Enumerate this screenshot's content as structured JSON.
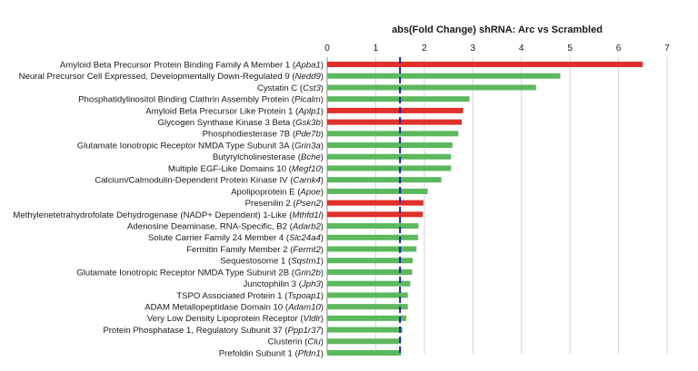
{
  "chart_data": {
    "type": "bar",
    "orientation": "horizontal",
    "title": "abs(Fold Change)  shRNA: Arc vs Scrambled",
    "xlim": [
      0,
      7
    ],
    "xticks": [
      "0",
      "1",
      "2",
      "3",
      "4",
      "5",
      "6",
      "7"
    ],
    "grid": true,
    "reference_line": 1.5,
    "colors": {
      "red": "#e0302b",
      "green": "#5cb85c",
      "reference": "#1f1fb0"
    },
    "bars": [
      {
        "name": "Amyloid Beta Precursor Protein Binding Family A Member 1 (",
        "gene": "Apba1",
        "value": 6.5,
        "color": "red"
      },
      {
        "name": "Neural Precursor Cell Expressed, Developmentally Down-Regulated 9 (",
        "gene": "Nedd9",
        "value": 4.8,
        "color": "green"
      },
      {
        "name": "Cystatin C (",
        "gene": "Cst3",
        "value": 4.3,
        "color": "green"
      },
      {
        "name": "Phosphatidylinositol Binding Clathrin Assembly Protein (",
        "gene": "Picalm",
        "value": 2.93,
        "color": "green"
      },
      {
        "name": "Amyloid Beta Precursor Like Protein 1 (",
        "gene": "Aplp1",
        "value": 2.8,
        "color": "red"
      },
      {
        "name": "Glycogen Synthase Kinase 3 Beta (",
        "gene": "Gsk3b",
        "value": 2.77,
        "color": "red"
      },
      {
        "name": "Phosphodiesterase 7B (",
        "gene": "Pde7b",
        "value": 2.7,
        "color": "green"
      },
      {
        "name": "Glutamate Ionotropic Receptor NMDA Type Subunit 3A (",
        "gene": "Grin3a",
        "value": 2.58,
        "color": "green"
      },
      {
        "name": "Butyrylcholinesterase (",
        "gene": "Bche",
        "value": 2.55,
        "color": "green"
      },
      {
        "name": "Multiple EGF-Like Domains 10 (",
        "gene": "Megf10",
        "value": 2.55,
        "color": "green"
      },
      {
        "name": "Calcium/Calmodulin-Dependent Protein Kinase IV (",
        "gene": "Camk4",
        "value": 2.35,
        "color": "green"
      },
      {
        "name": "Apolipoprotein E (",
        "gene": "Apoe",
        "value": 2.07,
        "color": "green"
      },
      {
        "name": "Presenilin 2 (",
        "gene": "Psen2",
        "value": 1.98,
        "color": "red"
      },
      {
        "name": "Methylenetetrahydrofolate Dehydrogenase (NADP+ Dependent) 1-Like (",
        "gene": "Mthfd1l",
        "value": 1.97,
        "color": "red"
      },
      {
        "name": "Adenosine Deaminase, RNA-Specific, B2 (",
        "gene": "Adarb2",
        "value": 1.88,
        "color": "green"
      },
      {
        "name": "Solute Carrier Family 24 Member 4 (",
        "gene": "Slc24a4",
        "value": 1.87,
        "color": "green"
      },
      {
        "name": "Fermitin Family Member 2 (",
        "gene": "Fermt2",
        "value": 1.84,
        "color": "green"
      },
      {
        "name": "Sequestosome 1 (",
        "gene": "Sqstm1",
        "value": 1.76,
        "color": "green"
      },
      {
        "name": "Glutamate Ionotropic Receptor NMDA Type Subunit 2B (",
        "gene": "Grin2b",
        "value": 1.75,
        "color": "green"
      },
      {
        "name": "Junctophilin 3 (",
        "gene": "Jph3",
        "value": 1.71,
        "color": "green"
      },
      {
        "name": "TSPO Associated Protein 1 (",
        "gene": "Tspoap1",
        "value": 1.66,
        "color": "green"
      },
      {
        "name": "ADAM Metallopeptidase Domain 10 (",
        "gene": "Adam10",
        "value": 1.66,
        "color": "green"
      },
      {
        "name": "Very Low Density Lipoprotein Receptor (",
        "gene": "Vldlr",
        "value": 1.63,
        "color": "green"
      },
      {
        "name": "Protein Phosphatase 1, Regulatory Subunit 37 (",
        "gene": "Ppp1r37",
        "value": 1.55,
        "color": "green"
      },
      {
        "name": "Clusterin (",
        "gene": "Clu",
        "value": 1.52,
        "color": "green"
      },
      {
        "name": "Prefoldin Subunit 1 (",
        "gene": "Pfdn1",
        "value": 1.52,
        "color": "green"
      }
    ]
  }
}
